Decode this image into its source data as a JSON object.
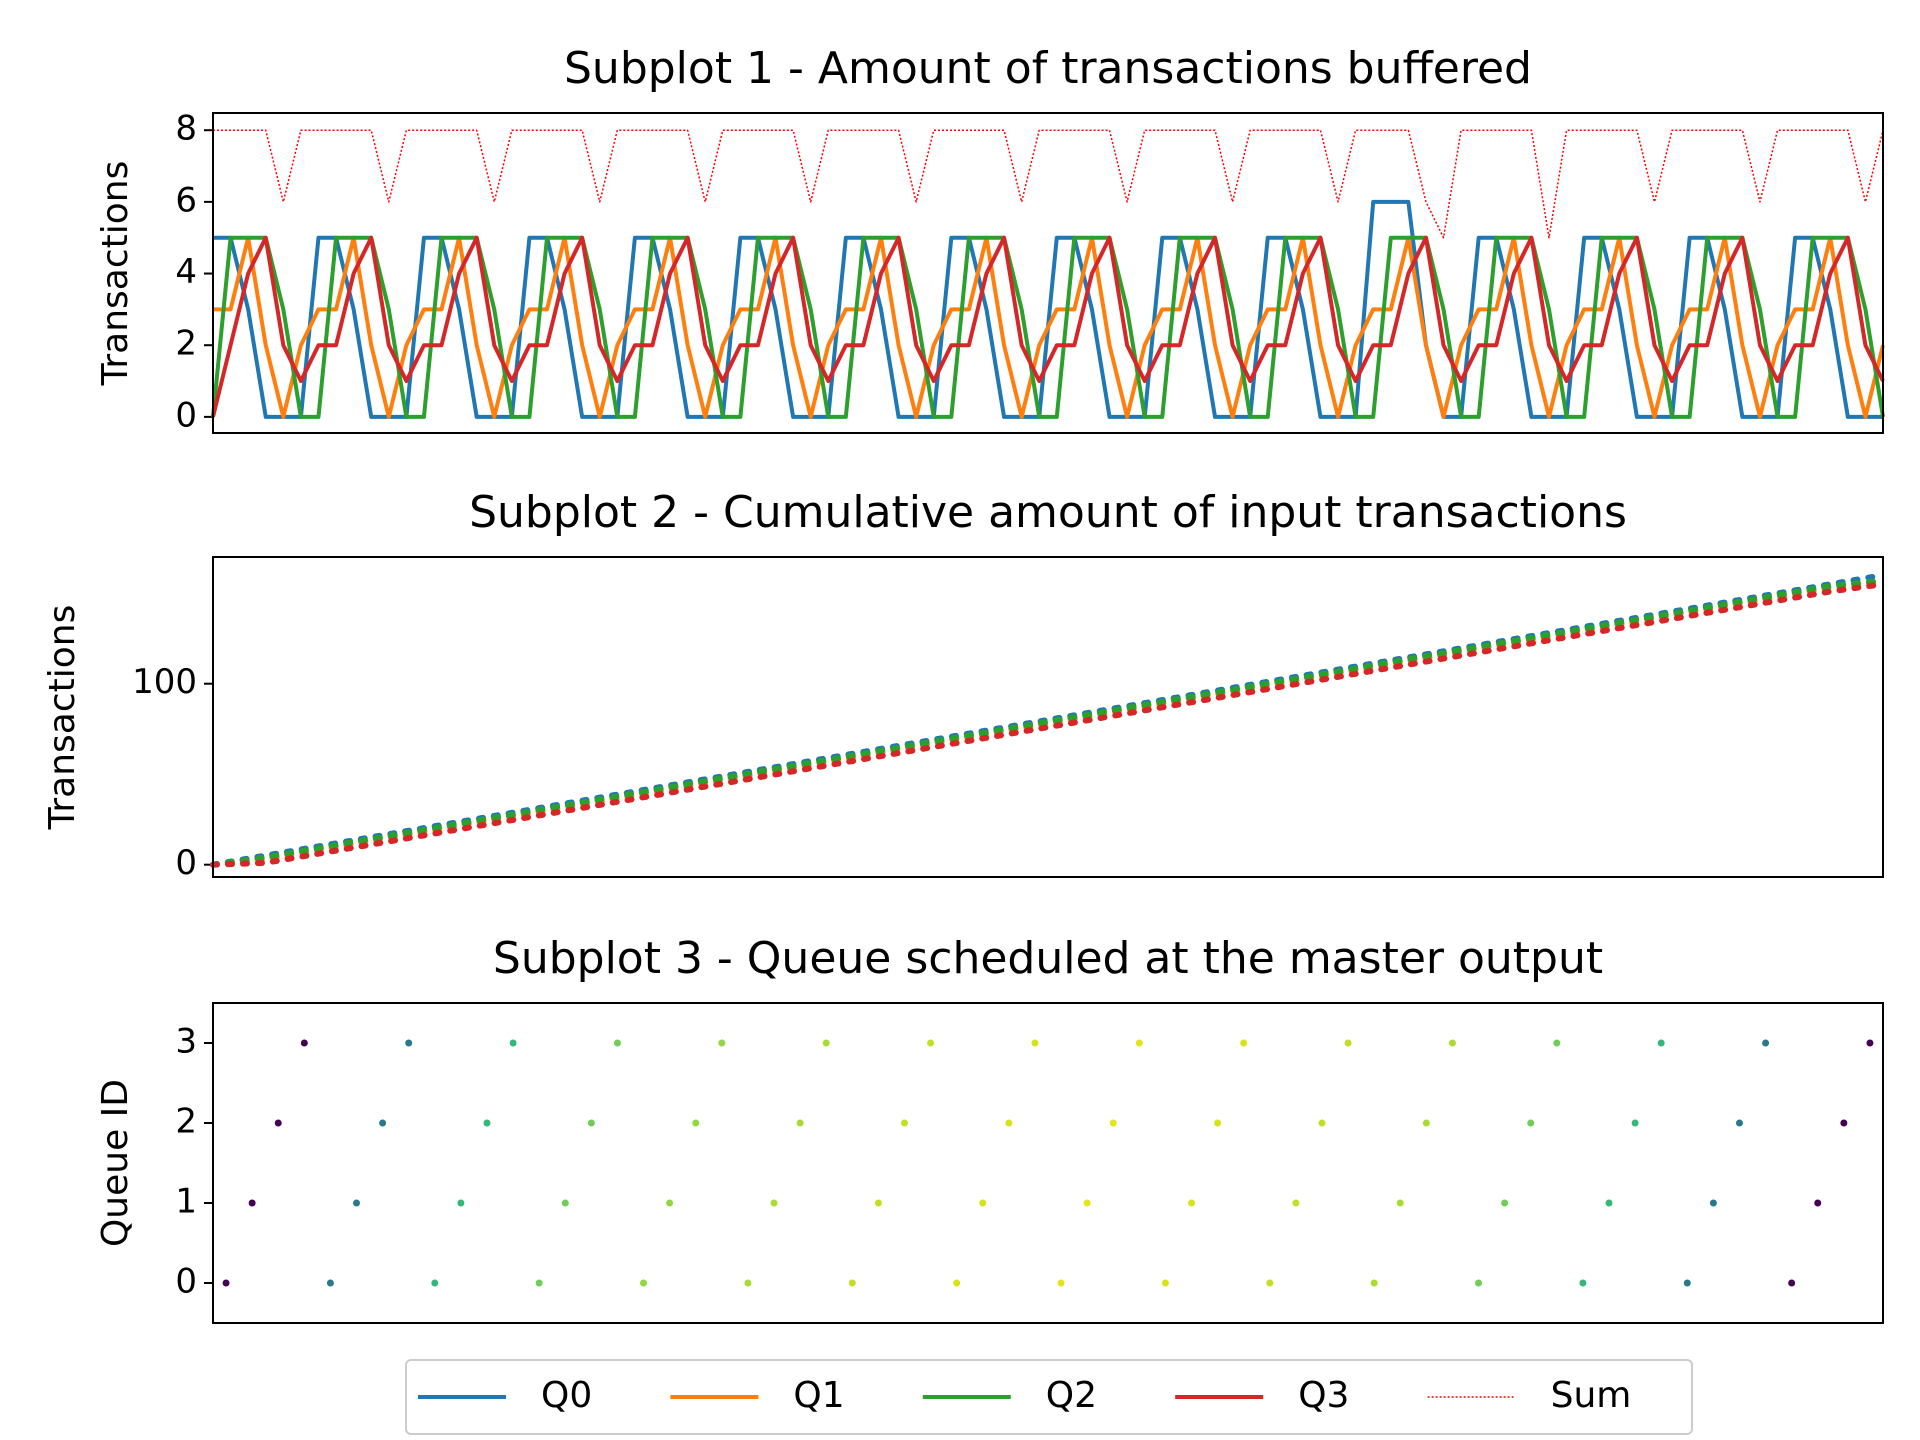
{
  "chart_data": [
    {
      "type": "line",
      "title": "Subplot 1 - Amount of transactions buffered",
      "ylabel": "Transactions",
      "ylim": [
        -0.45,
        8.48
      ],
      "yticks": [
        0,
        2,
        4,
        6,
        8
      ],
      "legend": "below",
      "series": [
        {
          "name": "Q0",
          "color": "#1f77b4",
          "values": [
            5,
            5,
            3,
            0,
            0,
            0,
            5,
            5,
            3,
            0,
            0,
            0,
            5,
            5,
            3,
            0,
            0,
            0,
            5,
            5,
            3,
            0,
            0,
            0,
            5,
            5,
            3,
            0,
            0,
            0,
            5,
            5,
            3,
            0,
            0,
            0,
            5,
            5,
            3,
            0,
            0,
            0,
            5,
            5,
            3,
            0,
            0,
            0,
            5,
            5,
            3,
            0,
            0,
            0,
            5,
            5,
            3,
            0,
            0,
            0,
            5,
            5,
            3,
            0,
            0,
            0,
            6,
            6,
            6,
            2,
            0,
            0,
            5,
            5,
            3,
            0,
            0,
            0,
            5,
            5,
            3,
            0,
            0,
            0,
            5,
            5,
            3,
            0,
            0,
            0,
            5,
            5,
            3,
            0,
            0,
            0
          ]
        },
        {
          "name": "Q1",
          "color": "#ff7f0e",
          "values": [
            3,
            3,
            5,
            2,
            0,
            2,
            3,
            3,
            5,
            2,
            0,
            2,
            3,
            3,
            5,
            2,
            0,
            2,
            3,
            3,
            5,
            2,
            0,
            2,
            3,
            3,
            5,
            2,
            0,
            2,
            3,
            3,
            5,
            2,
            0,
            2,
            3,
            3,
            5,
            2,
            0,
            2,
            3,
            3,
            5,
            2,
            0,
            2,
            3,
            3,
            5,
            2,
            0,
            2,
            3,
            3,
            5,
            2,
            0,
            2,
            3,
            3,
            5,
            2,
            0,
            2,
            3,
            3,
            5,
            2,
            0,
            2,
            3,
            3,
            5,
            2,
            0,
            2,
            3,
            3,
            5,
            2,
            0,
            2,
            3,
            3,
            5,
            2,
            0,
            2,
            3,
            3,
            5,
            2,
            0,
            2
          ]
        },
        {
          "name": "Q2",
          "color": "#2ca02c",
          "values": [
            0,
            5,
            5,
            5,
            3,
            0,
            0,
            5,
            5,
            5,
            3,
            0,
            0,
            5,
            5,
            5,
            3,
            0,
            0,
            5,
            5,
            5,
            3,
            0,
            0,
            5,
            5,
            5,
            3,
            0,
            0,
            5,
            5,
            5,
            3,
            0,
            0,
            5,
            5,
            5,
            3,
            0,
            0,
            5,
            5,
            5,
            3,
            0,
            0,
            5,
            5,
            5,
            3,
            0,
            0,
            5,
            5,
            5,
            3,
            0,
            0,
            5,
            5,
            5,
            3,
            0,
            0,
            5,
            5,
            5,
            3,
            0,
            0,
            5,
            5,
            5,
            3,
            0,
            0,
            5,
            5,
            5,
            3,
            0,
            0,
            5,
            5,
            5,
            3,
            0,
            0,
            5,
            5,
            5,
            3,
            0
          ]
        },
        {
          "name": "Q3",
          "color": "#d62728",
          "values": [
            0,
            2,
            4,
            5,
            2,
            1,
            2,
            2,
            4,
            5,
            2,
            1,
            2,
            2,
            4,
            5,
            2,
            1,
            2,
            2,
            4,
            5,
            2,
            1,
            2,
            2,
            4,
            5,
            2,
            1,
            2,
            2,
            4,
            5,
            2,
            1,
            2,
            2,
            4,
            5,
            2,
            1,
            2,
            2,
            4,
            5,
            2,
            1,
            2,
            2,
            4,
            5,
            2,
            1,
            2,
            2,
            4,
            5,
            2,
            1,
            2,
            2,
            4,
            5,
            2,
            1,
            2,
            2,
            4,
            5,
            2,
            1,
            2,
            2,
            4,
            5,
            2,
            1,
            2,
            2,
            4,
            5,
            2,
            1,
            2,
            2,
            4,
            5,
            2,
            1,
            2,
            2,
            4,
            5,
            2,
            1
          ]
        },
        {
          "name": "Sum",
          "color": "#ff0000",
          "linestyle": "dotted",
          "values": [
            8,
            8,
            8,
            8,
            6,
            8,
            8,
            8,
            8,
            8,
            6,
            8,
            8,
            8,
            8,
            8,
            6,
            8,
            8,
            8,
            8,
            8,
            6,
            8,
            8,
            8,
            8,
            8,
            6,
            8,
            8,
            8,
            8,
            8,
            6,
            8,
            8,
            8,
            8,
            8,
            6,
            8,
            8,
            8,
            8,
            8,
            6,
            8,
            8,
            8,
            8,
            8,
            6,
            8,
            8,
            8,
            8,
            8,
            6,
            8,
            8,
            8,
            8,
            8,
            6,
            8,
            8,
            8,
            8,
            6,
            5,
            8,
            8,
            8,
            8,
            8,
            5,
            8,
            8,
            8,
            8,
            8,
            6,
            8,
            8,
            8,
            8,
            8,
            6,
            8,
            8,
            8,
            8,
            8,
            6,
            8
          ]
        }
      ]
    },
    {
      "type": "line",
      "linestyle": "dotted",
      "title": "Subplot 2 - Cumulative amount of input transactions",
      "ylabel": "Transactions",
      "ylim": [
        -6.8,
        170
      ],
      "yticks": [
        0,
        100
      ],
      "series": [
        {
          "name": "Q0",
          "color": "#1f77b4",
          "values": [
            0,
            5,
            10,
            15,
            20,
            25,
            30,
            35,
            40,
            45,
            50,
            55,
            60,
            65,
            70,
            75,
            80,
            85,
            90,
            95,
            100,
            105,
            110,
            115,
            120,
            125,
            130,
            135,
            140,
            145,
            150,
            155,
            160
          ]
        },
        {
          "name": "Q1",
          "color": "#ff7f0e",
          "values": [
            0,
            3,
            8,
            13,
            18,
            23,
            28,
            33,
            38,
            43,
            48,
            53,
            58,
            63,
            68,
            73,
            78,
            83,
            88,
            93,
            98,
            103,
            108,
            113,
            118,
            123,
            128,
            133,
            138,
            143,
            148,
            153,
            156
          ]
        },
        {
          "name": "Q2",
          "color": "#2ca02c",
          "values": [
            0,
            4,
            9,
            14,
            19,
            24,
            29,
            34,
            39,
            44,
            49,
            54,
            59,
            64,
            69,
            74,
            79,
            84,
            89,
            94,
            99,
            104,
            109,
            114,
            119,
            124,
            129,
            134,
            139,
            144,
            149,
            154,
            157
          ]
        },
        {
          "name": "Q3",
          "color": "#d62728",
          "values": [
            0,
            1,
            6,
            11,
            16,
            21,
            26,
            31,
            36,
            41,
            46,
            51,
            56,
            61,
            66,
            71,
            76,
            81,
            86,
            91,
            96,
            101,
            106,
            111,
            116,
            121,
            126,
            131,
            136,
            141,
            146,
            151,
            155
          ]
        }
      ]
    },
    {
      "type": "scatter",
      "title": "Subplot 3 - Queue scheduled at the master output",
      "ylabel": "Queue ID",
      "ylim": [
        -0.5,
        3.5
      ],
      "yticks": [
        0,
        1,
        2,
        3
      ],
      "values": [
        0,
        1,
        2,
        3,
        0,
        1,
        2,
        3,
        0,
        1,
        2,
        3,
        0,
        1,
        2,
        3,
        0,
        1,
        2,
        3,
        0,
        1,
        2,
        3,
        0,
        1,
        2,
        3,
        0,
        1,
        2,
        3,
        0,
        1,
        2,
        3,
        0,
        1,
        2,
        3,
        0,
        1,
        2,
        3,
        0,
        1,
        2,
        3,
        0,
        1,
        2,
        3,
        0,
        1,
        2,
        3,
        0,
        1,
        2,
        3,
        0,
        1,
        2,
        3
      ],
      "colors": [
        "#440154",
        "#440154",
        "#440154",
        "#440154",
        "#2a788e",
        "#2a788e",
        "#2a788e",
        "#2a788e",
        "#35b779",
        "#35b779",
        "#35b779",
        "#35b779",
        "#6ece58",
        "#6ece58",
        "#6ece58",
        "#6ece58",
        "#90d743",
        "#90d743",
        "#90d743",
        "#90d743",
        "#a8db34",
        "#a8db34",
        "#a8db34",
        "#a8db34",
        "#c0df25",
        "#c0df25",
        "#c0df25",
        "#c0df25",
        "#d8e219",
        "#d8e219",
        "#d8e219",
        "#d8e219",
        "#e5e419",
        "#e5e419",
        "#e5e419",
        "#e5e419",
        "#d8e219",
        "#d8e219",
        "#d8e219",
        "#d8e219",
        "#c0df25",
        "#c0df25",
        "#c0df25",
        "#c0df25",
        "#a8db34",
        "#a8db34",
        "#a8db34",
        "#a8db34",
        "#6ece58",
        "#6ece58",
        "#6ece58",
        "#6ece58",
        "#35b779",
        "#35b779",
        "#35b779",
        "#35b779",
        "#2a788e",
        "#2a788e",
        "#2a788e",
        "#2a788e",
        "#440154",
        "#440154",
        "#440154",
        "#440154"
      ]
    }
  ]
}
